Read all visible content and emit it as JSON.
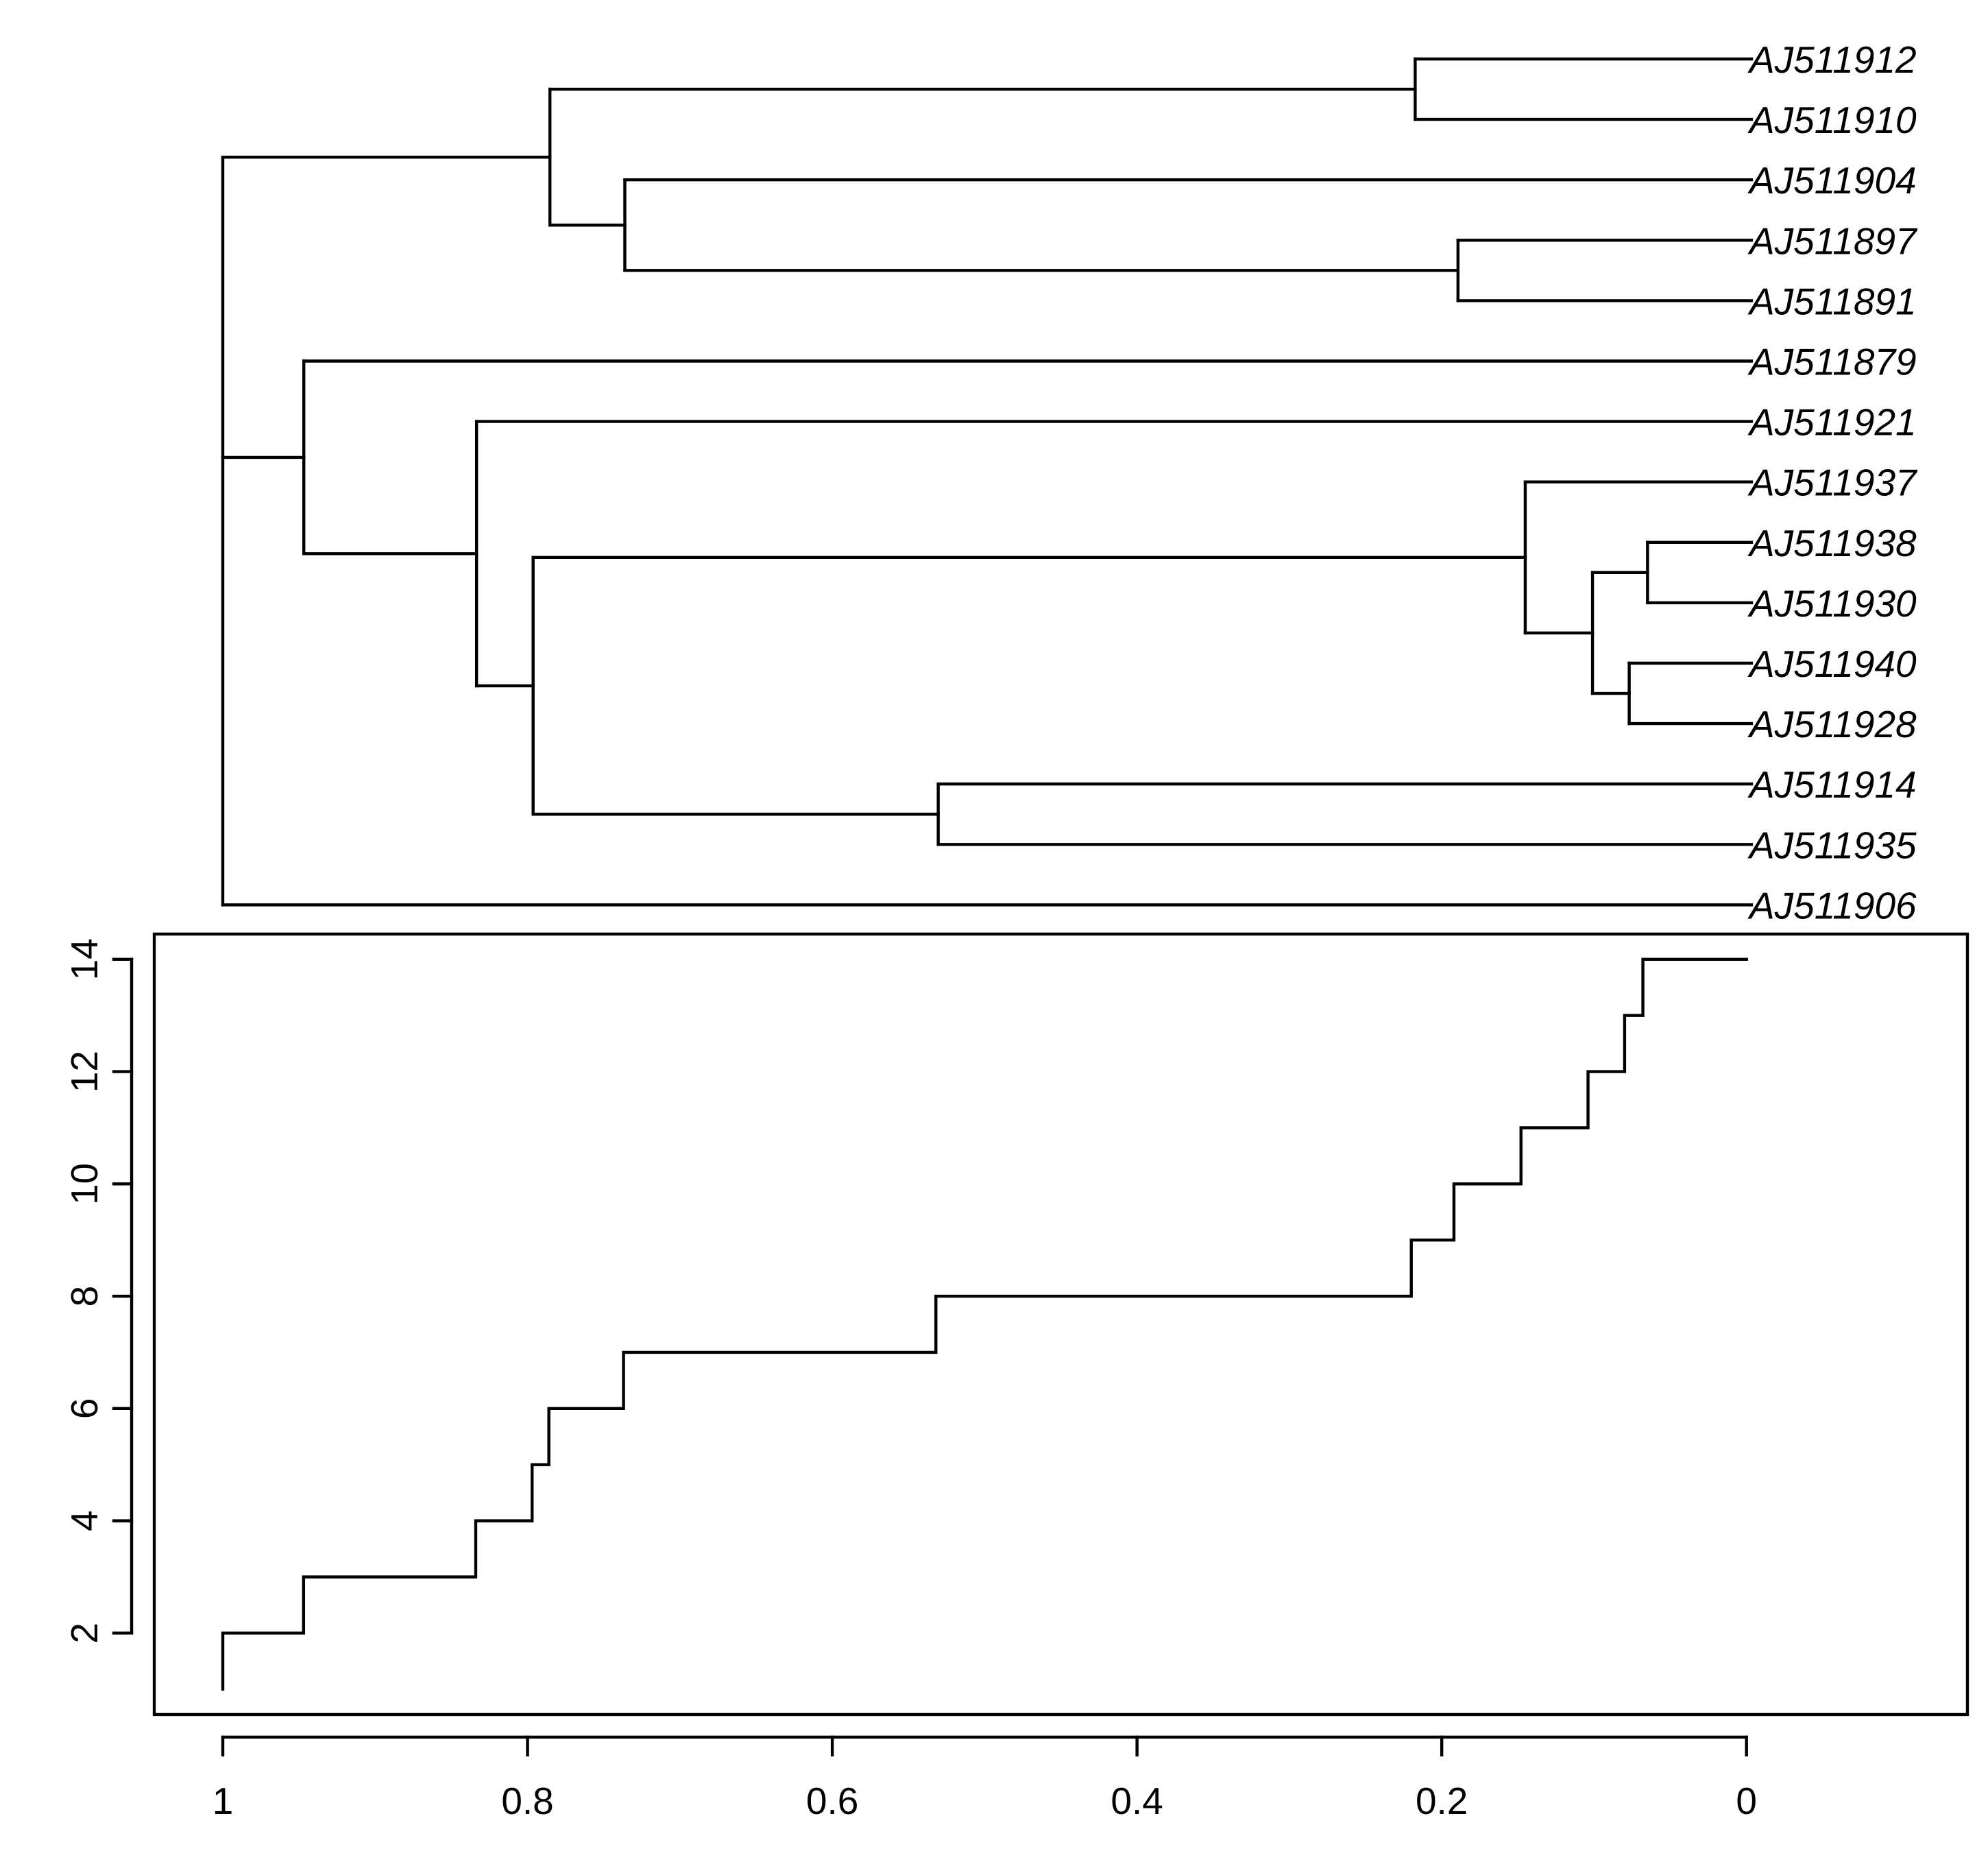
{
  "chart_data": [
    {
      "type": "dendrogram",
      "height_range": [
        0,
        1
      ],
      "leaves": [
        "AJ511912",
        "AJ511910",
        "AJ511904",
        "AJ511897",
        "AJ511891",
        "AJ511879",
        "AJ511921",
        "AJ511937",
        "AJ511938",
        "AJ511930",
        "AJ511940",
        "AJ511928",
        "AJ511914",
        "AJ511935",
        "AJ511906"
      ],
      "tree": {
        "h": 1.0,
        "children": [
          {
            "h": 0.786,
            "children": [
              {
                "h": 0.22,
                "children": [
                  {
                    "leaf": 0
                  },
                  {
                    "leaf": 1
                  }
                ]
              },
              {
                "h": 0.737,
                "children": [
                  {
                    "leaf": 2
                  },
                  {
                    "h": 0.192,
                    "children": [
                      {
                        "leaf": 3
                      },
                      {
                        "leaf": 4
                      }
                    ]
                  }
                ]
              }
            ]
          },
          {
            "h": 0.947,
            "children": [
              {
                "leaf": 5
              },
              {
                "h": 0.834,
                "children": [
                  {
                    "leaf": 6
                  },
                  {
                    "h": 0.797,
                    "children": [
                      {
                        "h": 0.148,
                        "children": [
                          {
                            "leaf": 7
                          },
                          {
                            "h": 0.104,
                            "children": [
                              {
                                "h": 0.068,
                                "children": [
                                  {
                                    "leaf": 8
                                  },
                                  {
                                    "leaf": 9
                                  }
                                ]
                              },
                              {
                                "h": 0.08,
                                "children": [
                                  {
                                    "leaf": 10
                                  },
                                  {
                                    "leaf": 11
                                  }
                                ]
                              }
                            ]
                          }
                        ]
                      },
                      {
                        "h": 0.532,
                        "children": [
                          {
                            "leaf": 12
                          },
                          {
                            "leaf": 13
                          }
                        ]
                      }
                    ]
                  }
                ]
              }
            ]
          },
          {
            "leaf": 14
          }
        ]
      }
    },
    {
      "type": "step",
      "x_reversed": true,
      "xlim": [
        1.045,
        -0.145
      ],
      "ylim": [
        0.55,
        14.45
      ],
      "x_ticks": [
        1,
        0.8,
        0.6,
        0.4,
        0.2,
        0
      ],
      "x_tick_labels": [
        "1",
        "0.8",
        "0.6",
        "0.4",
        "0.2",
        "0"
      ],
      "y_ticks": [
        2,
        4,
        6,
        8,
        10,
        12,
        14
      ],
      "y_tick_labels": [
        "2",
        "4",
        "6",
        "8",
        "10",
        "12",
        "14"
      ],
      "steps": [
        {
          "x": 1.0,
          "y": 1
        },
        {
          "x": 1.0,
          "y": 2
        },
        {
          "x": 0.947,
          "y": 3
        },
        {
          "x": 0.834,
          "y": 4
        },
        {
          "x": 0.797,
          "y": 5
        },
        {
          "x": 0.786,
          "y": 6
        },
        {
          "x": 0.737,
          "y": 7
        },
        {
          "x": 0.532,
          "y": 8
        },
        {
          "x": 0.22,
          "y": 9
        },
        {
          "x": 0.192,
          "y": 10
        },
        {
          "x": 0.148,
          "y": 11
        },
        {
          "x": 0.104,
          "y": 12
        },
        {
          "x": 0.08,
          "y": 13
        },
        {
          "x": 0.068,
          "y": 14
        }
      ],
      "x_end": 0
    }
  ]
}
